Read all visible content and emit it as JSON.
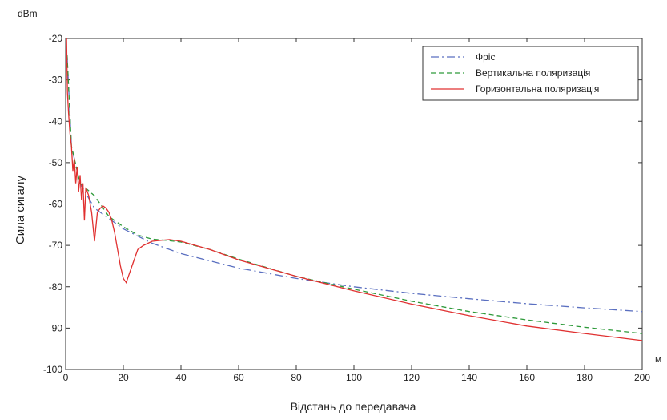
{
  "chart_data": {
    "type": "line",
    "xlabel": "Відстань до передавача",
    "ylabel": "Сила сигалу",
    "y_unit": "dBm",
    "x_unit": "м",
    "xlim": [
      0,
      200
    ],
    "ylim": [
      -100,
      -20
    ],
    "xticks": [
      0,
      20,
      40,
      60,
      80,
      100,
      120,
      140,
      160,
      180,
      200
    ],
    "yticks": [
      -20,
      -30,
      -40,
      -50,
      -60,
      -70,
      -80,
      -90,
      -100
    ],
    "grid": false,
    "legend_position": "top-right",
    "series": [
      {
        "name": "Фріс",
        "color": "#5a6fc0",
        "dash": "10,4,2,4",
        "x": [
          0.5,
          2,
          5,
          10,
          20,
          30,
          40,
          60,
          80,
          100,
          120,
          140,
          160,
          180,
          200
        ],
        "y": [
          -24,
          -46,
          -55,
          -61,
          -66,
          -69.5,
          -72,
          -75.5,
          -78,
          -80,
          -81.6,
          -82.9,
          -84.1,
          -85.1,
          -86
        ]
      },
      {
        "name": "Вертикальна поляризація",
        "color": "#2e9a3a",
        "dash": "6,4",
        "x": [
          0.5,
          2,
          5,
          10,
          15,
          20,
          25,
          30,
          35,
          40,
          50,
          60,
          80,
          100,
          120,
          140,
          160,
          180,
          200
        ],
        "y": [
          -24,
          -46,
          -55,
          -58,
          -63,
          -65.5,
          -67.5,
          -68.5,
          -68.8,
          -69.2,
          -71,
          -73.3,
          -77.5,
          -80.6,
          -83.5,
          -86,
          -88,
          -89.8,
          -91.3
        ]
      },
      {
        "name": "Горизонтальна поляризація",
        "color": "#e03030",
        "dash": "",
        "x": [
          0.3,
          0.6,
          1,
          1.5,
          2,
          2.5,
          3,
          3.5,
          4,
          4.5,
          5,
          5.5,
          6,
          6.5,
          7,
          7.5,
          8,
          9,
          10,
          11,
          12,
          13,
          14,
          15,
          16,
          17,
          18,
          19,
          20,
          21,
          22,
          23,
          24,
          25,
          27,
          30,
          33,
          36,
          40,
          50,
          60,
          80,
          100,
          120,
          140,
          160,
          180,
          200
        ],
        "y": [
          -20,
          -33,
          -38,
          -43,
          -46,
          -52,
          -49,
          -55,
          -51,
          -57,
          -53,
          -59,
          -55,
          -64,
          -56,
          -57,
          -58,
          -62,
          -69,
          -62,
          -61,
          -60.5,
          -61,
          -62,
          -64,
          -67,
          -71,
          -75,
          -78,
          -79,
          -77,
          -75,
          -73,
          -71,
          -70,
          -69,
          -68.8,
          -68.6,
          -69,
          -71,
          -73.5,
          -77.5,
          -81,
          -84.2,
          -87,
          -89.5,
          -91.3,
          -93
        ]
      }
    ]
  }
}
